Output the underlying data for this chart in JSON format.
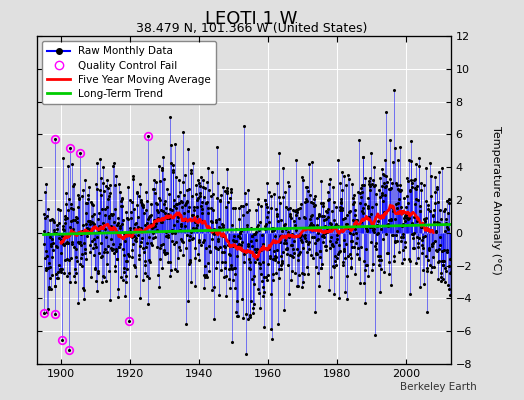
{
  "title": "LEOTI 1 W",
  "subtitle": "38.479 N, 101.366 W (United States)",
  "ylabel": "Temperature Anomaly (°C)",
  "credit": "Berkeley Earth",
  "xmin": 1893,
  "xmax": 2013,
  "ymin": -8,
  "ymax": 12,
  "yticks": [
    -8,
    -6,
    -4,
    -2,
    0,
    2,
    4,
    6,
    8,
    10,
    12
  ],
  "xticks": [
    1900,
    1920,
    1940,
    1960,
    1980,
    2000
  ],
  "raw_color": "#0000FF",
  "ma_color": "#FF0000",
  "trend_color": "#00CC00",
  "qc_color": "#FF00FF",
  "background_color": "#E0E0E0",
  "grid_color": "#FFFFFF",
  "title_fontsize": 13,
  "subtitle_fontsize": 9,
  "seed": 17
}
